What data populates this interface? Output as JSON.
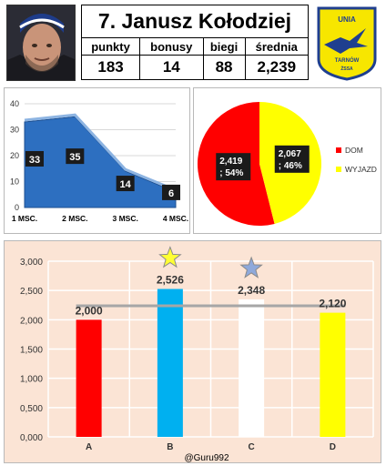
{
  "header": {
    "title": "7. Janusz Kołodziej",
    "stats": [
      {
        "label": "punkty",
        "value": "183"
      },
      {
        "label": "bonusy",
        "value": "14"
      },
      {
        "label": "biegi",
        "value": "88"
      },
      {
        "label": "średnia",
        "value": "2,239"
      }
    ],
    "logo": {
      "top_text": "UNIA",
      "bottom_text": "TARNÓW",
      "side_text": "ŻSSA",
      "colors": {
        "blue": "#1f3f8f",
        "yellow": "#f7e600"
      }
    }
  },
  "chart_data": [
    {
      "type": "area",
      "title": "",
      "categories": [
        "1 MSC.",
        "2 MSC.",
        "3 MSC.",
        "4 MSC."
      ],
      "values": [
        33,
        35,
        14,
        6
      ],
      "ylim": [
        0,
        40
      ],
      "yticks": [
        "0",
        "10",
        "20",
        "30",
        "40"
      ],
      "grid": true,
      "colors": {
        "fill": "#2d6fc0",
        "edge": "#1e4f8f",
        "label_bg": "#1b1b1b"
      }
    },
    {
      "type": "pie",
      "title": "",
      "slices": [
        {
          "name": "DOM",
          "value": 2.419,
          "label": "2,419",
          "percent_label": "; 54%",
          "color": "#ff0000"
        },
        {
          "name": "WYJAZD",
          "value": 2.067,
          "label": "2,067",
          "percent_label": "; 46%",
          "color": "#ffff00"
        }
      ],
      "legend": "right"
    },
    {
      "type": "bar",
      "title": "",
      "categories": [
        "A",
        "B",
        "C",
        "D"
      ],
      "values": [
        2.0,
        2.526,
        2.348,
        2.12
      ],
      "value_labels": [
        "2,000",
        "2,526",
        "2,348",
        "2,120"
      ],
      "colors": [
        "#ff0000",
        "#00b0f0",
        "#ffffff",
        "#ffff00"
      ],
      "ylim": [
        0,
        3
      ],
      "yticks": [
        "0,000",
        "0,500",
        "1,000",
        "1,500",
        "2,000",
        "2,500",
        "3,000"
      ],
      "reference_line": 2.239,
      "stars": [
        {
          "category": "B",
          "color": "#ffff33"
        },
        {
          "category": "C",
          "color": "#8ea9db"
        }
      ],
      "grid": true,
      "watermark": "@Guru992"
    }
  ]
}
